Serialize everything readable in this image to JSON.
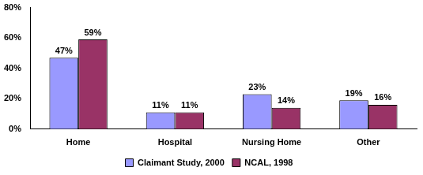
{
  "chart_data": {
    "type": "bar",
    "categories": [
      "Home",
      "Hospital",
      "Nursing Home",
      "Other"
    ],
    "series": [
      {
        "name": "Claimant Study, 2000",
        "color": "#9999ff",
        "values": [
          47,
          11,
          23,
          19
        ],
        "value_labels": [
          "47%",
          "11%",
          "23%",
          "19%"
        ]
      },
      {
        "name": "NCAL, 1998",
        "color": "#993366",
        "values": [
          59,
          11,
          14,
          16
        ],
        "value_labels": [
          "59%",
          "11%",
          "14%",
          "16%"
        ]
      }
    ],
    "ylim": [
      0,
      80
    ],
    "yticks": [
      {
        "value": 0,
        "label": "0%"
      },
      {
        "value": 20,
        "label": "20%"
      },
      {
        "value": 40,
        "label": "40%"
      },
      {
        "value": 60,
        "label": "60%"
      },
      {
        "value": 80,
        "label": "80%"
      }
    ],
    "grid": false,
    "legend": "bottom",
    "data_labels": true
  }
}
